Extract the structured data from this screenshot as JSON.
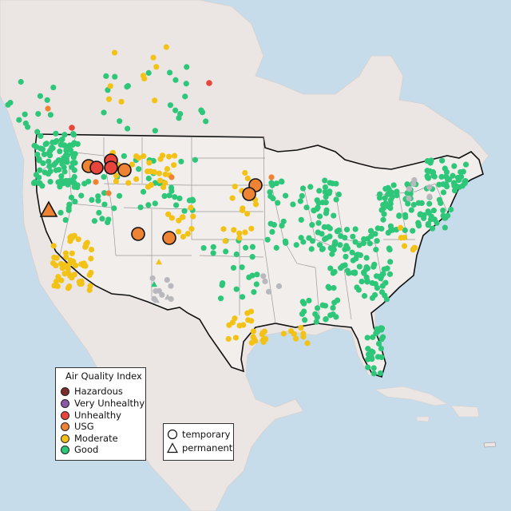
{
  "legend_aqi": {
    "title": "Air Quality Index",
    "items": [
      {
        "label": "Hazardous",
        "color": "#7b2d2a"
      },
      {
        "label": "Very Unhealthy",
        "color": "#8a58a6"
      },
      {
        "label": "Unhealthy",
        "color": "#e8453c"
      },
      {
        "label": "USG",
        "color": "#ee8433"
      },
      {
        "label": "Moderate",
        "color": "#f3c217"
      },
      {
        "label": "Good",
        "color": "#2ec77a"
      }
    ]
  },
  "legend_type": {
    "items": [
      {
        "label": "temporary",
        "shape": "circle"
      },
      {
        "label": "permanent",
        "shape": "triangle"
      }
    ]
  },
  "colors": {
    "water": "#c7dcea",
    "land": "#ebe6e4",
    "usa": "#f2eeec",
    "no_data": "#b9b9bd"
  }
}
